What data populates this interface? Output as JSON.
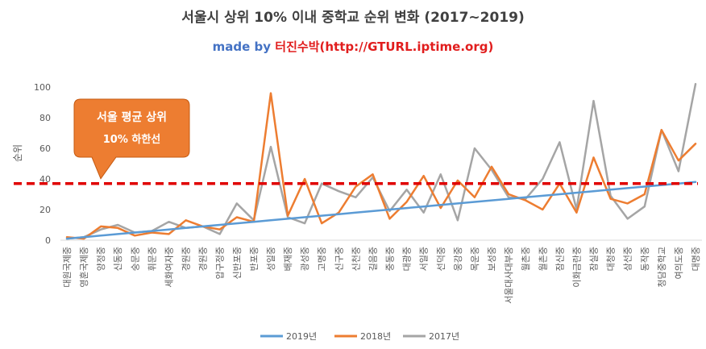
{
  "title": "서울시 상위 10% 이내 중학교 순위 변화 (2017~2019)",
  "credit": {
    "made_by": "made by ",
    "author": "터진수박(http://GTURL.iptime.org)",
    "made_by_color": "#4472C4",
    "author_color": "#E11D1D"
  },
  "callout": {
    "line1": "서울 평균 상위",
    "line2": "10% 하한선",
    "fill": "#ED7D31",
    "threshold": 37
  },
  "chart_data": {
    "type": "line",
    "title": "서울시 상위 10% 이내 중학교 순위 변화 (2017~2019)",
    "xlabel": "",
    "ylabel": "순위",
    "ylim": [
      0,
      100
    ],
    "yticks": [
      0,
      20,
      40,
      60,
      80,
      100
    ],
    "grid": false,
    "legend_position": "bottom",
    "categories": [
      "대원국제중",
      "영훈국제중",
      "양정중",
      "신동중",
      "숭문중",
      "휘문중",
      "세화여자중",
      "경원중",
      "경원중",
      "압구정중",
      "신반포중",
      "반포중",
      "성일중",
      "배재중",
      "광성중",
      "고명중",
      "신구중",
      "신천중",
      "길음중",
      "중동중",
      "대광중",
      "서일중",
      "선덕중",
      "웅강중",
      "목운중",
      "보성중",
      "서울대사대부중",
      "월촌중",
      "월촌중",
      "잠신중",
      "이화금란중",
      "잠실중",
      "대청중",
      "삼선중",
      "동작중",
      "청담중학교",
      "여의도중",
      "대명중"
    ],
    "series": [
      {
        "name": "2019년",
        "color": "#5B9BD5",
        "values": [
          1,
          2,
          3,
          4,
          5,
          6,
          7,
          8,
          9,
          10,
          11,
          12,
          13,
          14,
          15,
          16,
          17,
          18,
          19,
          20,
          21,
          22,
          23,
          24,
          25,
          26,
          27,
          28,
          29,
          30,
          31,
          32,
          33,
          34,
          35,
          36,
          37,
          38
        ]
      },
      {
        "name": "2018년",
        "color": "#ED7D31",
        "values": [
          2,
          1,
          9,
          8,
          3,
          5,
          4,
          13,
          9,
          7,
          15,
          12,
          96,
          16,
          40,
          11,
          18,
          35,
          43,
          14,
          25,
          42,
          21,
          39,
          28,
          48,
          30,
          26,
          20,
          37,
          18,
          54,
          27,
          24,
          30,
          72,
          52,
          63
        ]
      },
      {
        "name": "2017년",
        "color": "#A5A5A5",
        "values": [
          1,
          2,
          7,
          10,
          5,
          6,
          12,
          8,
          9,
          4,
          24,
          13,
          61,
          15,
          11,
          37,
          32,
          28,
          41,
          19,
          33,
          18,
          43,
          13,
          60,
          46,
          28,
          27,
          40,
          64,
          20,
          91,
          29,
          14,
          22,
          72,
          45,
          102
        ]
      }
    ]
  }
}
